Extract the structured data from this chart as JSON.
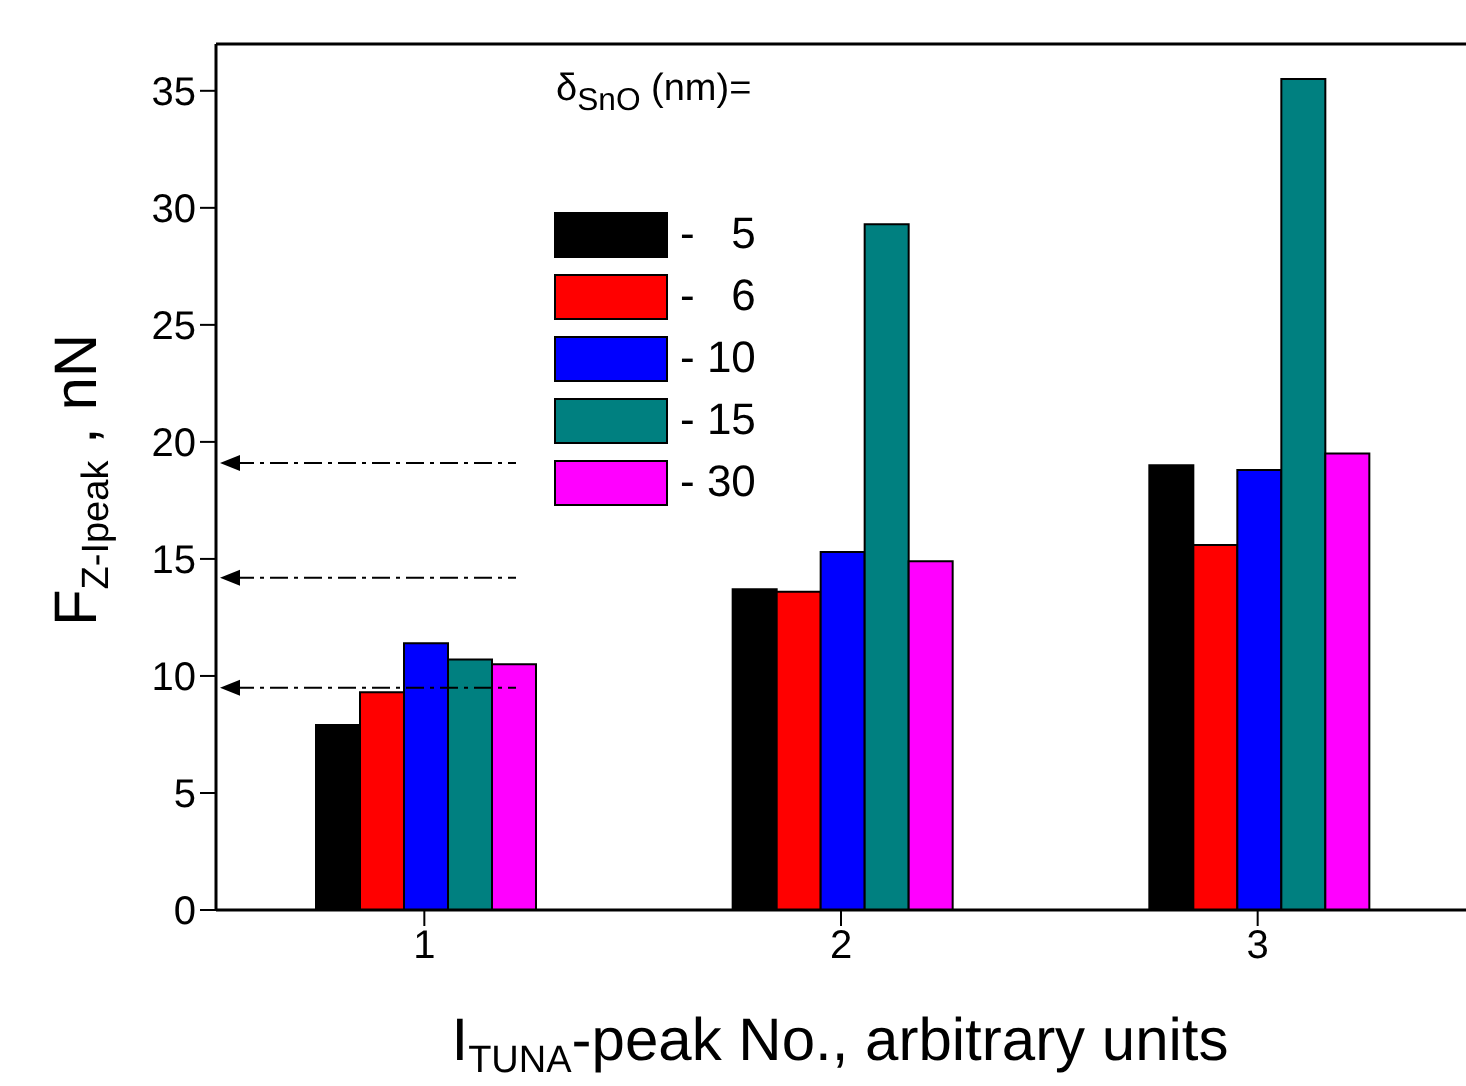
{
  "chart_data": {
    "type": "bar",
    "xlabel": "I$_{TUNA}$-peak No., arbitrary units",
    "ylabel": "F$_{Z-Ipeak}$ , nN",
    "legend_title": "δ$_{SnO}$ (nm)=",
    "categories": [
      "1",
      "2",
      "3"
    ],
    "series": [
      {
        "name": "-   5",
        "color": "#000000",
        "values": [
          7.9,
          13.7,
          19.0
        ]
      },
      {
        "name": "-   6",
        "color": "#ff0000",
        "values": [
          9.3,
          13.6,
          15.6
        ]
      },
      {
        "name": "- 10",
        "color": "#0000ff",
        "values": [
          11.4,
          15.3,
          18.8
        ]
      },
      {
        "name": "- 15",
        "color": "#008080",
        "values": [
          10.7,
          29.3,
          35.5
        ]
      },
      {
        "name": "- 30",
        "color": "#ff00ff",
        "values": [
          10.5,
          14.9,
          19.5
        ]
      }
    ],
    "ylim": [
      0,
      37
    ],
    "yticks": [
      0,
      5,
      10,
      15,
      20,
      25,
      30,
      35
    ],
    "legend": "top",
    "ref_lines": [
      {
        "axis": "y",
        "value": 19.1,
        "line_style": "dashdot"
      },
      {
        "axis": "y",
        "value": 14.2,
        "line_style": "dashdot"
      },
      {
        "axis": "y",
        "value": 9.5,
        "line_style": "dashdot"
      }
    ]
  }
}
